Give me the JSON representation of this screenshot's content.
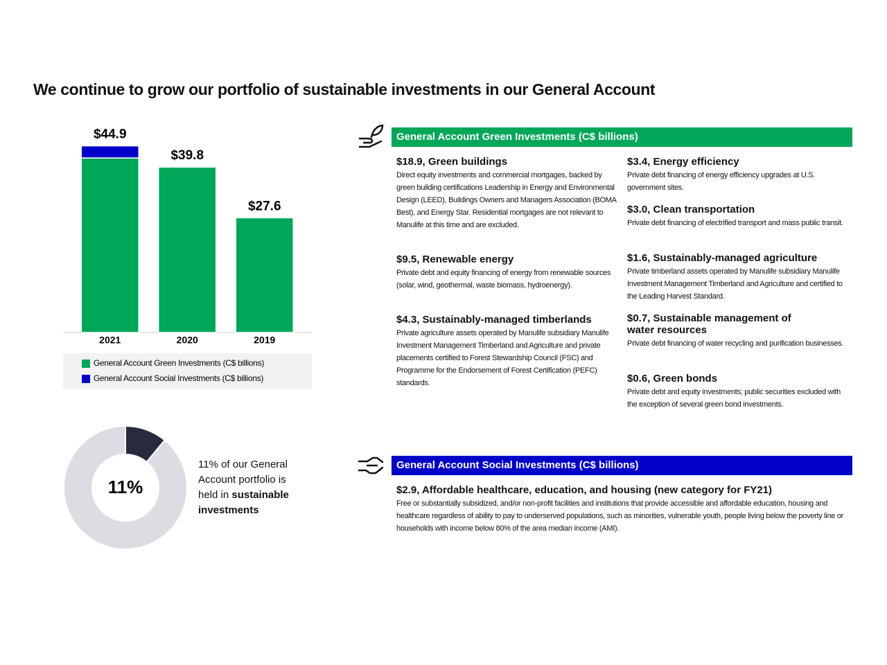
{
  "title": "We continue to grow our portfolio of sustainable investments in our General Account",
  "chart_data": [
    {
      "type": "bar",
      "stacked": true,
      "categories": [
        "2021",
        "2020",
        "2019"
      ],
      "series": [
        {
          "name": "General Account Green Investments (C$ billions)",
          "color": "#00a758",
          "values": [
            42.0,
            39.8,
            27.6
          ]
        },
        {
          "name": "General Account Social Investments (C$ billions)",
          "color": "#0000c8",
          "values": [
            2.9,
            null,
            null
          ]
        }
      ],
      "totals": [
        44.9,
        39.8,
        27.6
      ],
      "total_labels": [
        "$44.9",
        "$39.8",
        "$27.6"
      ],
      "ylim": [
        0,
        50
      ]
    },
    {
      "type": "pie",
      "donut": true,
      "values": [
        11,
        89
      ],
      "value_labels": [
        "11%",
        null
      ],
      "colors": [
        "#282b3e",
        "#dcdde2"
      ],
      "caption": "11% of our General Account portfolio is held in",
      "caption_bold": "sustainable investments"
    }
  ],
  "green_panel": {
    "heading": "General Account Green Investments (C$ billions)",
    "items": [
      {
        "title": "$18.9, Green buildings",
        "text": "Direct equity investments and commercial mortgages, backed by green building certifications Leadership in Energy and Environmental Design (LEED), Buildings Owners and Managers Association (BOMA Best), and Energy Star. Residential mortgages are not relevant to Manulife at this time and are excluded."
      },
      {
        "title": "$9.5, Renewable energy",
        "text": "Private debt and equity financing of energy from renewable sources (solar, wind, geothermal, waste biomass, hydroenergy)."
      },
      {
        "title": "$4.3, Sustainably-managed timberlands",
        "text": "Private agriculture assets operated by Manulife subsidiary Manulife Investment Management Timberland and Agriculture and private placements certified to Forest Stewardship Council (FSC) and Programme for the Endorsement of Forest Certification (PEFC) standards."
      },
      {
        "title": "$3.4, Energy efficiency",
        "text": "Private debt financing of energy efficiency upgrades at U.S. government sites."
      },
      {
        "title": "$3.0, Clean transportation",
        "text": "Private debt financing of electrified transport and mass public transit."
      },
      {
        "title": "$1.6, Sustainably-managed agriculture",
        "text": "Private timberland assets operated by Manulife subsidiary Manulife Investment Management Timberland and Agriculture and certified to the Leading Harvest Standard."
      },
      {
        "title": "$0.7, Sustainable management of water resources",
        "text": "Private debt financing of water recycling and purification businesses."
      },
      {
        "title": "$0.6, Green bonds",
        "text": "Private debt and equity investments; public securities excluded with the exception of several green bond investments."
      }
    ]
  },
  "social_panel": {
    "heading": "General Account Social Investments (C$ billions)",
    "items": [
      {
        "title": "$2.9, Affordable healthcare, education, and housing (new category for FY21)",
        "text": "Free or substantially subsidized, and/or non-profit facilities and institutions that provide accessible and affordable education, housing and healthcare regardless of ability to pay to underserved populations, such as minorities, vulnerable youth, people living below the poverty line or households with income below 80% of the area median income (AMI)."
      }
    ]
  }
}
